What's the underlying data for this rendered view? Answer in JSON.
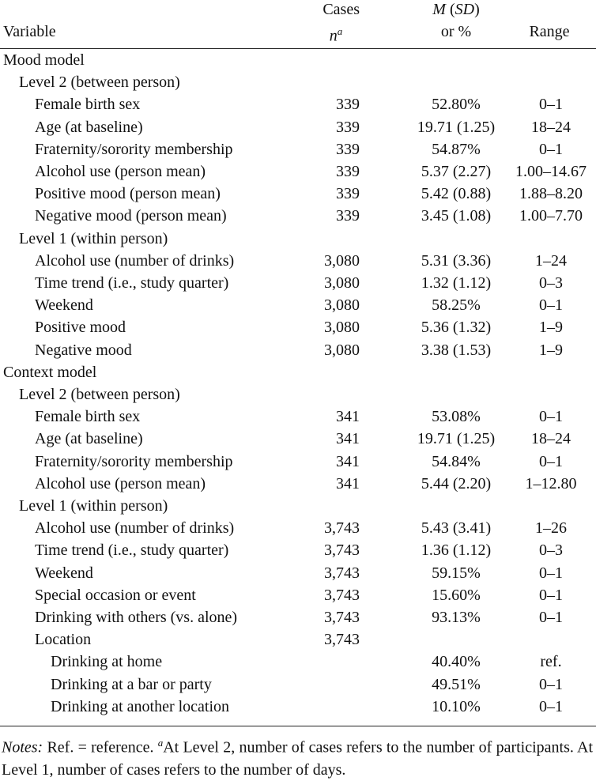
{
  "header": {
    "variable": "Variable",
    "cases": [
      "Cases",
      "n",
      "a"
    ],
    "mean": [
      {
        "text": "M",
        "italic": true
      },
      {
        "text": " ("
      },
      {
        "text": "SD",
        "italic": true
      },
      {
        "text": ")"
      }
    ],
    "mean_line2": "or %",
    "range": "Range"
  },
  "sections": [
    {
      "title": "Mood model",
      "groups": [
        {
          "title": "Level 2 (between person)",
          "rows": [
            {
              "label": "Female birth sex",
              "n": "339",
              "value": "52.80%",
              "range": "0–1"
            },
            {
              "label": "Age (at baseline)",
              "n": "339",
              "value": "19.71 (1.25)",
              "range": "18–24"
            },
            {
              "label": "Fraternity/sorority membership",
              "n": "339",
              "value": "54.87%",
              "range": "0–1"
            },
            {
              "label": "Alcohol use (person mean)",
              "n": "339",
              "value": "5.37 (2.27)",
              "range": "1.00–14.67"
            },
            {
              "label": "Positive mood (person mean)",
              "n": "339",
              "value": "5.42 (0.88)",
              "range": "1.88–8.20"
            },
            {
              "label": "Negative mood (person mean)",
              "n": "339",
              "value": "3.45 (1.08)",
              "range": "1.00–7.70"
            }
          ]
        },
        {
          "title": "Level 1 (within person)",
          "rows": [
            {
              "label": "Alcohol use (number of drinks)",
              "n": "3,080",
              "value": "5.31 (3.36)",
              "range": "1–24"
            },
            {
              "label": "Time trend (i.e., study quarter)",
              "n": "3,080",
              "value": "1.32 (1.12)",
              "range": "0–3"
            },
            {
              "label": "Weekend",
              "n": "3,080",
              "value": "58.25%",
              "range": "0–1"
            },
            {
              "label": "Positive mood",
              "n": "3,080",
              "value": "5.36 (1.32)",
              "range": "1–9"
            },
            {
              "label": "Negative mood",
              "n": "3,080",
              "value": "3.38 (1.53)",
              "range": "1–9"
            }
          ]
        }
      ]
    },
    {
      "title": "Context model",
      "groups": [
        {
          "title": "Level 2 (between person)",
          "rows": [
            {
              "label": "Female birth sex",
              "n": "341",
              "value": "53.08%",
              "range": "0–1"
            },
            {
              "label": "Age (at baseline)",
              "n": "341",
              "value": "19.71 (1.25)",
              "range": "18–24"
            },
            {
              "label": "Fraternity/sorority membership",
              "n": "341",
              "value": "54.84%",
              "range": "0–1"
            },
            {
              "label": "Alcohol use (person mean)",
              "n": "341",
              "value": "5.44 (2.20)",
              "range": "1–12.80"
            }
          ]
        },
        {
          "title": "Level 1 (within person)",
          "rows": [
            {
              "label": "Alcohol use (number of drinks)",
              "n": "3,743",
              "value": "5.43 (3.41)",
              "range": "1–26"
            },
            {
              "label": "Time trend (i.e., study quarter)",
              "n": "3,743",
              "value": "1.36 (1.12)",
              "range": "0–3"
            },
            {
              "label": "Weekend",
              "n": "3,743",
              "value": "59.15%",
              "range": "0–1"
            },
            {
              "label": "Special occasion or event",
              "n": "3,743",
              "value": "15.60%",
              "range": "0–1"
            },
            {
              "label": "Drinking with others (vs. alone)",
              "n": "3,743",
              "value": "93.13%",
              "range": "0–1"
            },
            {
              "label": "Location",
              "n": "3,743",
              "subrows": [
                {
                  "label": "Drinking at home",
                  "value": "40.40%",
                  "range": "ref."
                },
                {
                  "label": "Drinking at a bar or party",
                  "value": "49.51%",
                  "range": "0–1"
                },
                {
                  "label": "Drinking at another location",
                  "value": "10.10%",
                  "range": "0–1"
                }
              ]
            }
          ]
        }
      ]
    }
  ],
  "notes": [
    {
      "text": "Notes:",
      "italic": true
    },
    {
      "text": " Ref. = reference. "
    },
    {
      "text": "a",
      "italic": true,
      "sup": true
    },
    {
      "text": "At Level 2, number of cases refers to the number of participants. At Level 1, number of cases refers to the number of days."
    }
  ]
}
